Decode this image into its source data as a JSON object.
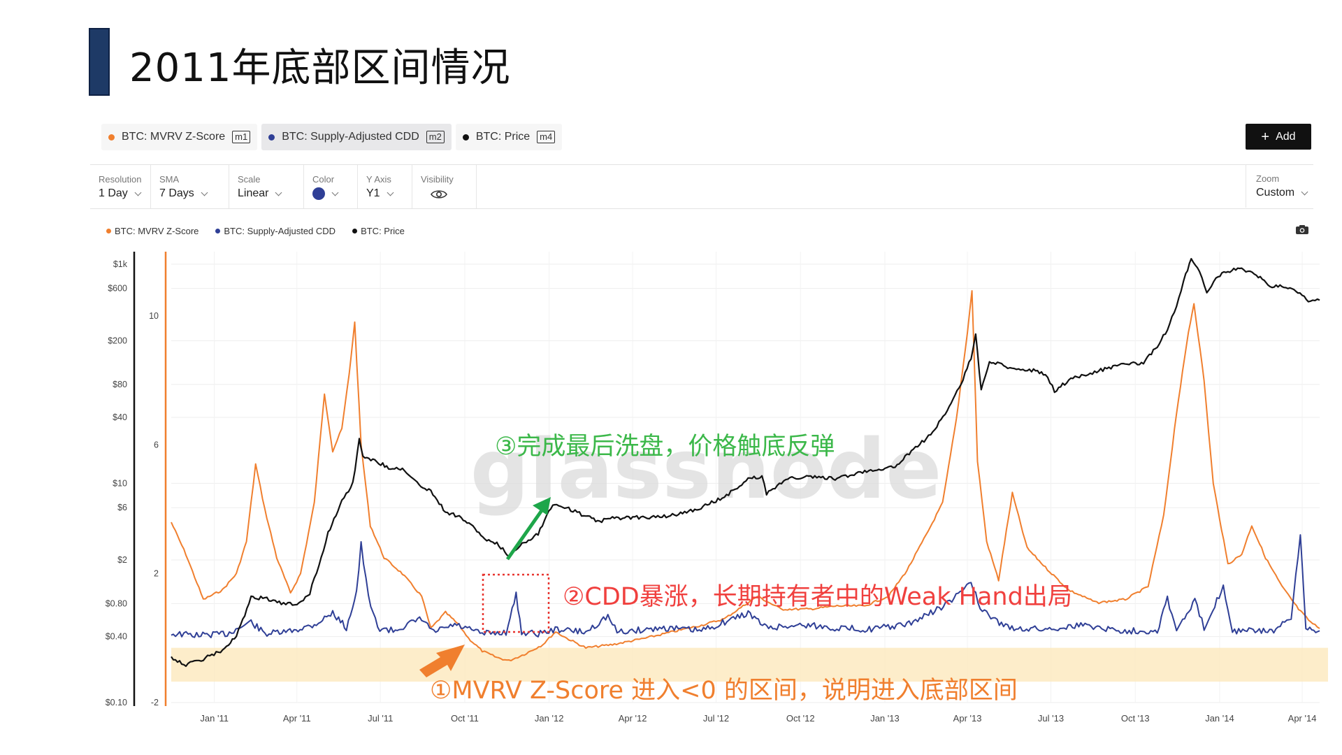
{
  "slide": {
    "title": "2011年底部区间情况"
  },
  "metric_tabs": [
    {
      "label": "BTC: MVRV Z-Score",
      "badge": "m1",
      "color": "#f07f2e"
    },
    {
      "label": "BTC: Supply-Adjusted CDD",
      "badge": "m2",
      "color": "#2f3f96"
    },
    {
      "label": "BTC: Price",
      "badge": "m4",
      "color": "#111111"
    }
  ],
  "add_button": {
    "label": "Add"
  },
  "controls": {
    "resolution": {
      "label": "Resolution",
      "value": "1 Day"
    },
    "sma": {
      "label": "SMA",
      "value": "7 Days"
    },
    "scale": {
      "label": "Scale",
      "value": "Linear"
    },
    "color": {
      "label": "Color",
      "value": "#2f3f96"
    },
    "y_axis": {
      "label": "Y Axis",
      "value": "Y1"
    },
    "visibility": {
      "label": "Visibility",
      "icon": "eye-icon"
    },
    "zoom": {
      "label": "Zoom",
      "value": "Custom"
    }
  },
  "watermark": "glassnode",
  "chart_data": {
    "type": "line",
    "legend": [
      "BTC: MVRV Z-Score",
      "BTC: Supply-Adjusted CDD",
      "BTC: Price"
    ],
    "x_ticks": [
      "Jan '11",
      "Apr '11",
      "Jul '11",
      "Oct '11",
      "Jan '12",
      "Apr '12",
      "Jul '12",
      "Oct '12",
      "Jan '13",
      "Apr '13",
      "Jul '13",
      "Oct '13",
      "Jan '14",
      "Apr '14"
    ],
    "y_left_price_ticks": [
      "$1k",
      "$600",
      "$200",
      "$80",
      "$40",
      "$10",
      "$6",
      "$2",
      "$0.80",
      "$0.40",
      "$0.10"
    ],
    "y_right_zscore_ticks": [
      "10",
      "6",
      "2",
      "-2"
    ],
    "x_range": [
      "2010-11-15",
      "2014-04-20"
    ],
    "price_scale": "log",
    "price_range": [
      0.1,
      1300
    ],
    "zscore_range": [
      -2,
      12
    ],
    "series": [
      {
        "name": "BTC: MVRV Z-Score",
        "color": "#f07f2e",
        "points": [
          [
            "2010-11-15",
            3.6
          ],
          [
            "2010-12-01",
            2.6
          ],
          [
            "2010-12-20",
            1.2
          ],
          [
            "2011-01-10",
            1.5
          ],
          [
            "2011-01-25",
            2.0
          ],
          [
            "2011-02-05",
            3.0
          ],
          [
            "2011-02-15",
            5.4
          ],
          [
            "2011-02-25",
            4.0
          ],
          [
            "2011-03-10",
            2.5
          ],
          [
            "2011-03-25",
            1.4
          ],
          [
            "2011-04-05",
            2.0
          ],
          [
            "2011-04-20",
            4.2
          ],
          [
            "2011-05-01",
            7.6
          ],
          [
            "2011-05-10",
            5.8
          ],
          [
            "2011-05-20",
            6.5
          ],
          [
            "2011-05-28",
            8.2
          ],
          [
            "2011-06-03",
            9.8
          ],
          [
            "2011-06-10",
            6.0
          ],
          [
            "2011-06-20",
            3.5
          ],
          [
            "2011-07-05",
            2.5
          ],
          [
            "2011-07-25",
            2.0
          ],
          [
            "2011-08-15",
            1.3
          ],
          [
            "2011-08-25",
            0.3
          ],
          [
            "2011-09-10",
            0.8
          ],
          [
            "2011-09-25",
            0.4
          ],
          [
            "2011-10-05",
            0.0
          ],
          [
            "2011-10-20",
            -0.4
          ],
          [
            "2011-11-05",
            -0.6
          ],
          [
            "2011-11-18",
            -0.7
          ],
          [
            "2011-12-05",
            -0.5
          ],
          [
            "2011-12-25",
            -0.2
          ],
          [
            "2012-01-08",
            0.2
          ],
          [
            "2012-01-20",
            0.0
          ],
          [
            "2012-02-10",
            -0.3
          ],
          [
            "2012-03-10",
            -0.2
          ],
          [
            "2012-04-15",
            0.0
          ],
          [
            "2012-05-15",
            0.2
          ],
          [
            "2012-06-15",
            0.4
          ],
          [
            "2012-07-10",
            0.6
          ],
          [
            "2012-08-15",
            1.3
          ],
          [
            "2012-09-10",
            0.9
          ],
          [
            "2012-10-10",
            0.9
          ],
          [
            "2012-11-10",
            1.0
          ],
          [
            "2012-12-10",
            1.0
          ],
          [
            "2013-01-05",
            1.3
          ],
          [
            "2013-01-25",
            2.1
          ],
          [
            "2013-02-15",
            3.2
          ],
          [
            "2013-03-05",
            4.2
          ],
          [
            "2013-03-20",
            6.8
          ],
          [
            "2013-04-01",
            9.5
          ],
          [
            "2013-04-06",
            10.8
          ],
          [
            "2013-04-12",
            5.5
          ],
          [
            "2013-04-22",
            3.0
          ],
          [
            "2013-05-05",
            1.8
          ],
          [
            "2013-05-20",
            4.5
          ],
          [
            "2013-06-05",
            2.8
          ],
          [
            "2013-06-25",
            2.2
          ],
          [
            "2013-07-20",
            1.5
          ],
          [
            "2013-08-20",
            1.1
          ],
          [
            "2013-09-20",
            1.2
          ],
          [
            "2013-10-15",
            1.6
          ],
          [
            "2013-11-01",
            3.8
          ],
          [
            "2013-11-15",
            7.0
          ],
          [
            "2013-11-28",
            9.5
          ],
          [
            "2013-12-04",
            10.4
          ],
          [
            "2013-12-15",
            8.0
          ],
          [
            "2013-12-25",
            4.8
          ],
          [
            "2014-01-10",
            2.3
          ],
          [
            "2014-01-25",
            2.6
          ],
          [
            "2014-02-05",
            3.5
          ],
          [
            "2014-02-20",
            2.5
          ],
          [
            "2014-03-10",
            1.6
          ],
          [
            "2014-03-28",
            0.9
          ],
          [
            "2014-04-10",
            0.5
          ],
          [
            "2014-04-20",
            0.3
          ]
        ]
      },
      {
        "name": "BTC: Supply-Adjusted CDD",
        "color": "#2f3f96",
        "points": [
          [
            "2010-11-15",
            0.2
          ],
          [
            "2010-12-15",
            0.15
          ],
          [
            "2011-01-15",
            0.2
          ],
          [
            "2011-02-10",
            0.6
          ],
          [
            "2011-02-25",
            0.2
          ],
          [
            "2011-03-20",
            0.25
          ],
          [
            "2011-04-20",
            0.5
          ],
          [
            "2011-05-10",
            0.9
          ],
          [
            "2011-05-25",
            0.4
          ],
          [
            "2011-06-05",
            1.6
          ],
          [
            "2011-06-10",
            3.2
          ],
          [
            "2011-06-18",
            1.4
          ],
          [
            "2011-06-28",
            0.4
          ],
          [
            "2011-07-15",
            0.3
          ],
          [
            "2011-08-15",
            0.7
          ],
          [
            "2011-08-28",
            0.25
          ],
          [
            "2011-09-20",
            0.5
          ],
          [
            "2011-10-20",
            0.2
          ],
          [
            "2011-11-15",
            0.25
          ],
          [
            "2011-11-26",
            1.5
          ],
          [
            "2011-12-02",
            0.25
          ],
          [
            "2011-12-20",
            0.2
          ],
          [
            "2012-01-10",
            0.35
          ],
          [
            "2012-02-10",
            0.25
          ],
          [
            "2012-03-05",
            0.8
          ],
          [
            "2012-03-15",
            0.25
          ],
          [
            "2012-05-05",
            0.4
          ],
          [
            "2012-06-15",
            0.3
          ],
          [
            "2012-08-05",
            0.9
          ],
          [
            "2012-08-25",
            0.4
          ],
          [
            "2012-10-05",
            0.5
          ],
          [
            "2012-11-05",
            0.4
          ],
          [
            "2012-12-15",
            0.35
          ],
          [
            "2013-01-25",
            0.5
          ],
          [
            "2013-02-20",
            0.9
          ],
          [
            "2013-03-15",
            1.3
          ],
          [
            "2013-04-05",
            2.0
          ],
          [
            "2013-04-15",
            1.0
          ],
          [
            "2013-05-15",
            0.4
          ],
          [
            "2013-06-25",
            0.35
          ],
          [
            "2013-08-05",
            0.5
          ],
          [
            "2013-09-15",
            0.3
          ],
          [
            "2013-10-25",
            0.3
          ],
          [
            "2013-11-05",
            1.4
          ],
          [
            "2013-11-15",
            0.3
          ],
          [
            "2013-12-05",
            1.3
          ],
          [
            "2013-12-15",
            0.4
          ],
          [
            "2014-01-05",
            1.8
          ],
          [
            "2014-01-15",
            0.3
          ],
          [
            "2014-03-01",
            0.3
          ],
          [
            "2014-03-20",
            0.7
          ],
          [
            "2014-03-30",
            3.5
          ],
          [
            "2014-04-05",
            0.4
          ],
          [
            "2014-04-20",
            0.3
          ]
        ]
      },
      {
        "name": "BTC: Price",
        "color": "#111111",
        "points": [
          [
            "2010-11-15",
            0.26
          ],
          [
            "2010-12-01",
            0.22
          ],
          [
            "2010-12-20",
            0.25
          ],
          [
            "2011-01-10",
            0.3
          ],
          [
            "2011-01-25",
            0.4
          ],
          [
            "2011-02-10",
            0.9
          ],
          [
            "2011-02-25",
            0.9
          ],
          [
            "2011-03-15",
            0.8
          ],
          [
            "2011-04-01",
            0.78
          ],
          [
            "2011-04-15",
            1.0
          ],
          [
            "2011-04-25",
            1.8
          ],
          [
            "2011-05-05",
            3.5
          ],
          [
            "2011-05-20",
            7.0
          ],
          [
            "2011-06-01",
            10.0
          ],
          [
            "2011-06-08",
            25.0
          ],
          [
            "2011-06-12",
            18.0
          ],
          [
            "2011-06-25",
            16.0
          ],
          [
            "2011-07-10",
            14.0
          ],
          [
            "2011-07-25",
            13.5
          ],
          [
            "2011-08-10",
            10.0
          ],
          [
            "2011-08-25",
            8.5
          ],
          [
            "2011-09-10",
            5.5
          ],
          [
            "2011-09-25",
            5.0
          ],
          [
            "2011-10-10",
            4.0
          ],
          [
            "2011-10-25",
            3.0
          ],
          [
            "2011-11-05",
            2.8
          ],
          [
            "2011-11-18",
            2.2
          ],
          [
            "2011-12-05",
            2.9
          ],
          [
            "2011-12-20",
            3.5
          ],
          [
            "2012-01-05",
            6.5
          ],
          [
            "2012-01-20",
            6.0
          ],
          [
            "2012-02-10",
            5.0
          ],
          [
            "2012-02-25",
            4.5
          ],
          [
            "2012-03-10",
            4.8
          ],
          [
            "2012-04-10",
            4.9
          ],
          [
            "2012-05-10",
            5.0
          ],
          [
            "2012-06-10",
            5.8
          ],
          [
            "2012-07-10",
            7.5
          ],
          [
            "2012-08-05",
            11.0
          ],
          [
            "2012-08-20",
            11.5
          ],
          [
            "2012-08-25",
            8.0
          ],
          [
            "2012-09-15",
            11.0
          ],
          [
            "2012-10-10",
            11.5
          ],
          [
            "2012-11-10",
            11.0
          ],
          [
            "2012-12-10",
            13.0
          ],
          [
            "2013-01-10",
            14.0
          ],
          [
            "2013-02-01",
            20.0
          ],
          [
            "2013-02-20",
            28.0
          ],
          [
            "2013-03-10",
            46.0
          ],
          [
            "2013-03-25",
            80.0
          ],
          [
            "2013-04-05",
            140.0
          ],
          [
            "2013-04-10",
            230.0
          ],
          [
            "2013-04-16",
            70.0
          ],
          [
            "2013-04-25",
            130.0
          ],
          [
            "2013-05-15",
            115.0
          ],
          [
            "2013-06-10",
            108.0
          ],
          [
            "2013-06-25",
            100.0
          ],
          [
            "2013-07-05",
            70.0
          ],
          [
            "2013-07-25",
            92.0
          ],
          [
            "2013-08-20",
            105.0
          ],
          [
            "2013-09-20",
            125.0
          ],
          [
            "2013-10-10",
            125.0
          ],
          [
            "2013-10-25",
            180.0
          ],
          [
            "2013-11-05",
            250.0
          ],
          [
            "2013-11-15",
            420.0
          ],
          [
            "2013-11-25",
            800.0
          ],
          [
            "2013-12-01",
            1130.0
          ],
          [
            "2013-12-10",
            850.0
          ],
          [
            "2013-12-18",
            550.0
          ],
          [
            "2013-12-28",
            750.0
          ],
          [
            "2014-01-10",
            870.0
          ],
          [
            "2014-01-25",
            900.0
          ],
          [
            "2014-02-10",
            800.0
          ],
          [
            "2014-02-25",
            620.0
          ],
          [
            "2014-03-10",
            640.0
          ],
          [
            "2014-03-25",
            580.0
          ],
          [
            "2014-04-10",
            450.0
          ],
          [
            "2014-04-20",
            470.0
          ]
        ]
      }
    ],
    "highlight_band_zscore": [
      -1.35,
      -0.3
    ],
    "annotations": [
      {
        "text": "③完成最后洗盘，价格触底反弹",
        "color": "#3cb84a"
      },
      {
        "text": "②CDD暴涨，长期持有者中的Weak Hand出局",
        "color": "#f0403e"
      },
      {
        "text": "①MVRV Z-Score 进入<0 的区间，说明进入底部区间",
        "color": "#f07f2e"
      }
    ]
  }
}
